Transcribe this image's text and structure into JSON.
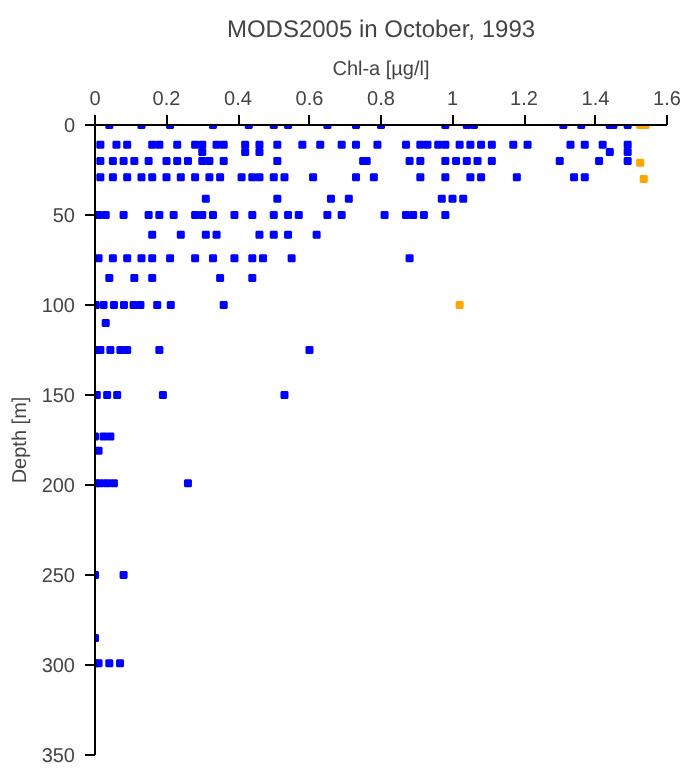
{
  "chart_data": {
    "type": "scatter",
    "title": "MODS2005 in October, 1993",
    "xlabel": "Chl-a [µg/l]",
    "ylabel": "Depth [m]",
    "xlim": [
      0,
      1.6
    ],
    "xticks": [
      0,
      0.2,
      0.4,
      0.6,
      0.8,
      1,
      1.2,
      1.4,
      1.6
    ],
    "ylim": [
      350,
      0
    ],
    "yticks": [
      0,
      50,
      100,
      150,
      200,
      250,
      300,
      350
    ],
    "grid": false,
    "marker": "square",
    "series": [
      {
        "color": "#0000ff",
        "x": [
          0.04,
          0.13,
          0.21,
          0.33,
          0.43,
          0.5,
          0.54,
          0.65,
          0.73,
          0.8,
          0.98,
          1.04,
          1.06,
          1.31,
          1.36,
          1.44,
          1.45,
          1.49,
          0.015,
          0.06,
          0.09,
          0.16,
          0.18,
          0.23,
          0.28,
          0.3,
          0.34,
          0.36,
          0.42,
          0.46,
          0.51,
          0.58,
          0.63,
          0.69,
          0.73,
          0.79,
          0.87,
          0.91,
          0.93,
          0.96,
          0.98,
          1.02,
          1.05,
          1.08,
          1.11,
          1.17,
          1.21,
          1.33,
          1.37,
          1.42,
          1.49,
          0.015,
          0.05,
          0.08,
          0.11,
          0.15,
          0.2,
          0.23,
          0.26,
          0.3,
          0.32,
          0.36,
          0.51,
          0.76,
          0.75,
          0.88,
          0.91,
          0.98,
          1.01,
          1.04,
          1.07,
          1.11,
          1.3,
          1.41,
          1.49,
          0.3,
          0.42,
          0.46,
          1.44,
          1.49,
          0.015,
          0.05,
          0.09,
          0.13,
          0.16,
          0.2,
          0.24,
          0.28,
          0.32,
          0.35,
          0.41,
          0.44,
          0.46,
          0.5,
          0.53,
          0.61,
          0.73,
          0.78,
          0.91,
          0.98,
          1.05,
          1.08,
          1.18,
          1.34,
          1.37,
          0.31,
          0.51,
          0.66,
          0.71,
          0.97,
          1.0,
          1.03,
          0.01,
          0.03,
          0.08,
          0.15,
          0.18,
          0.22,
          0.28,
          0.3,
          0.33,
          0.39,
          0.44,
          0.5,
          0.54,
          0.57,
          0.65,
          0.69,
          0.81,
          0.87,
          0.89,
          0.92,
          0.98,
          0.16,
          0.24,
          0.31,
          0.34,
          0.46,
          0.5,
          0.54,
          0.62,
          0.01,
          0.05,
          0.09,
          0.13,
          0.16,
          0.21,
          0.28,
          0.33,
          0.39,
          0.44,
          0.47,
          0.55,
          0.88,
          0.04,
          0.11,
          0.16,
          0.35,
          0.44,
          0.002,
          0.024,
          0.053,
          0.081,
          0.108,
          0.127,
          0.174,
          0.212,
          0.36,
          0.03,
          0,
          0.015,
          0.043,
          0.071,
          0.09,
          0.18,
          0.6,
          0.005,
          0.034,
          0.062,
          0.19,
          0.53,
          0,
          0.024,
          0.043,
          0.01,
          0,
          0.015,
          0.034,
          0.053,
          0.26,
          0,
          0.08,
          0,
          0,
          0.01,
          0.04,
          0.07
        ],
        "values": [
          0,
          0,
          0,
          0,
          0,
          0,
          0,
          0,
          0,
          0,
          0,
          0,
          0,
          0,
          0,
          0,
          0,
          0,
          11,
          11,
          11,
          11,
          11,
          11,
          11,
          11,
          11,
          11,
          11,
          11,
          11,
          11,
          11,
          11,
          11,
          11,
          11,
          11,
          11,
          11,
          11,
          11,
          11,
          11,
          11,
          11,
          11,
          11,
          11,
          11,
          11,
          20,
          20,
          20,
          20,
          20,
          20,
          20,
          20,
          20,
          20,
          20,
          20,
          20,
          20,
          20,
          20,
          20,
          20,
          20,
          20,
          20,
          20,
          20,
          20,
          15,
          15,
          15,
          15,
          15,
          29,
          29,
          29,
          29,
          29,
          29,
          29,
          29,
          29,
          29,
          29,
          29,
          29,
          29,
          29,
          29,
          29,
          29,
          29,
          29,
          29,
          29,
          29,
          29,
          29,
          41,
          41,
          41,
          41,
          41,
          41,
          41,
          50,
          50,
          50,
          50,
          50,
          50,
          50,
          50,
          50,
          50,
          50,
          50,
          50,
          50,
          50,
          50,
          50,
          50,
          50,
          50,
          50,
          61,
          61,
          61,
          61,
          61,
          61,
          61,
          61,
          74,
          74,
          74,
          74,
          74,
          74,
          74,
          74,
          74,
          74,
          74,
          74,
          74,
          85,
          85,
          85,
          85,
          85,
          100,
          100,
          100,
          100,
          100,
          100,
          100,
          100,
          100,
          110,
          125,
          125,
          125,
          125,
          125,
          125,
          125,
          150,
          150,
          150,
          150,
          150,
          173,
          173,
          173,
          181,
          199,
          199,
          199,
          199,
          199,
          250,
          250,
          285,
          299,
          299,
          299,
          299
        ]
      },
      {
        "color": "#ffa500",
        "x": [
          1.525,
          1.54,
          1.525,
          1.535,
          1.02
        ],
        "values": [
          0,
          0,
          21,
          30,
          100
        ]
      }
    ]
  }
}
